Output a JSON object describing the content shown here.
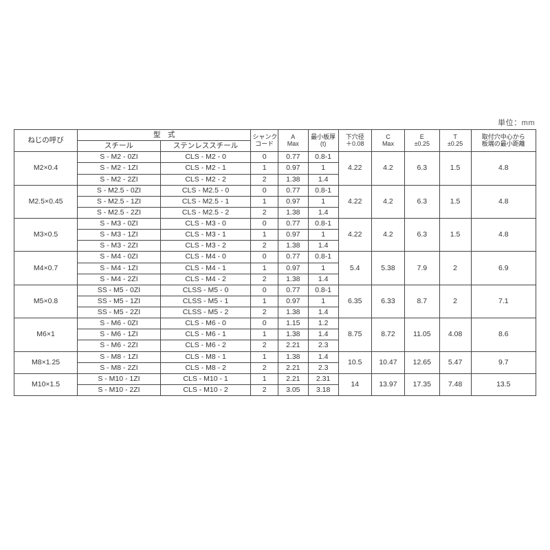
{
  "unit_label": "単位：mm",
  "colors": {
    "border": "#444444",
    "text": "#333333",
    "bg": "#ffffff",
    "unit_text": "#555555"
  },
  "header": {
    "thread": "ねじの呼び",
    "model_group": "型　式",
    "steel": "スチール",
    "stainless": "ステンレススチール",
    "shank_code": "シャンク\nコード",
    "a_max": "A\nMax",
    "min_thick": "最小板厚\n(t)",
    "hole_dia": "下穴径\n＋0.08",
    "c_max": "C\nMax",
    "e_tol": "E\n±0.25",
    "t_tol": "T\n±0.25",
    "edge_dist": "取付穴中心から\n板端の最小距離"
  },
  "groups": [
    {
      "thread": "M2×0.4",
      "rows": [
        {
          "steel": "S - M2 - 0ZI",
          "stain": "CLS - M2 - 0",
          "shank": "0",
          "amax": "0.77",
          "minthk": "0.8-1"
        },
        {
          "steel": "S - M2 - 1ZI",
          "stain": "CLS - M2 - 1",
          "shank": "1",
          "amax": "0.97",
          "minthk": "1"
        },
        {
          "steel": "S - M2 - 2ZI",
          "stain": "CLS - M2 - 2",
          "shank": "2",
          "amax": "1.38",
          "minthk": "1.4"
        }
      ],
      "hole": "4.22",
      "cmax": "4.2",
      "e": "6.3",
      "t": "1.5",
      "edge": "4.8"
    },
    {
      "thread": "M2.5×0.45",
      "rows": [
        {
          "steel": "S - M2.5 - 0ZI",
          "stain": "CLS - M2.5 - 0",
          "shank": "0",
          "amax": "0.77",
          "minthk": "0.8-1"
        },
        {
          "steel": "S - M2.5 - 1ZI",
          "stain": "CLS - M2.5 - 1",
          "shank": "1",
          "amax": "0.97",
          "minthk": "1"
        },
        {
          "steel": "S - M2.5 - 2ZI",
          "stain": "CLS - M2.5 - 2",
          "shank": "2",
          "amax": "1.38",
          "minthk": "1.4"
        }
      ],
      "hole": "4.22",
      "cmax": "4.2",
      "e": "6.3",
      "t": "1.5",
      "edge": "4.8"
    },
    {
      "thread": "M3×0.5",
      "rows": [
        {
          "steel": "S - M3 - 0ZI",
          "stain": "CLS - M3 - 0",
          "shank": "0",
          "amax": "0.77",
          "minthk": "0.8-1"
        },
        {
          "steel": "S - M3 - 1ZI",
          "stain": "CLS - M3 - 1",
          "shank": "1",
          "amax": "0.97",
          "minthk": "1"
        },
        {
          "steel": "S - M3 - 2ZI",
          "stain": "CLS - M3 - 2",
          "shank": "2",
          "amax": "1.38",
          "minthk": "1.4"
        }
      ],
      "hole": "4.22",
      "cmax": "4.2",
      "e": "6.3",
      "t": "1.5",
      "edge": "4.8"
    },
    {
      "thread": "M4×0.7",
      "rows": [
        {
          "steel": "S - M4 - 0ZI",
          "stain": "CLS - M4 - 0",
          "shank": "0",
          "amax": "0.77",
          "minthk": "0.8-1"
        },
        {
          "steel": "S - M4 - 1ZI",
          "stain": "CLS - M4 - 1",
          "shank": "1",
          "amax": "0.97",
          "minthk": "1"
        },
        {
          "steel": "S - M4 - 2ZI",
          "stain": "CLS - M4 - 2",
          "shank": "2",
          "amax": "1.38",
          "minthk": "1.4"
        }
      ],
      "hole": "5.4",
      "cmax": "5.38",
      "e": "7.9",
      "t": "2",
      "edge": "6.9"
    },
    {
      "thread": "M5×0.8",
      "rows": [
        {
          "steel": "SS - M5 - 0ZI",
          "stain": "CLSS - M5 - 0",
          "shank": "0",
          "amax": "0.77",
          "minthk": "0.8-1"
        },
        {
          "steel": "SS - M5 - 1ZI",
          "stain": "CLSS - M5 - 1",
          "shank": "1",
          "amax": "0.97",
          "minthk": "1"
        },
        {
          "steel": "SS - M5 - 2ZI",
          "stain": "CLSS - M5 - 2",
          "shank": "2",
          "amax": "1.38",
          "minthk": "1.4"
        }
      ],
      "hole": "6.35",
      "cmax": "6.33",
      "e": "8.7",
      "t": "2",
      "edge": "7.1"
    },
    {
      "thread": "M6×1",
      "rows": [
        {
          "steel": "S - M6 - 0ZI",
          "stain": "CLS - M6 - 0",
          "shank": "0",
          "amax": "1.15",
          "minthk": "1.2"
        },
        {
          "steel": "S - M6 - 1ZI",
          "stain": "CLS - M6 - 1",
          "shank": "1",
          "amax": "1.38",
          "minthk": "1.4"
        },
        {
          "steel": "S - M6 - 2ZI",
          "stain": "CLS - M6 - 2",
          "shank": "2",
          "amax": "2.21",
          "minthk": "2.3"
        }
      ],
      "hole": "8.75",
      "cmax": "8.72",
      "e": "11.05",
      "t": "4.08",
      "edge": "8.6"
    },
    {
      "thread": "M8×1.25",
      "rows": [
        {
          "steel": "S - M8 - 1ZI",
          "stain": "CLS - M8 - 1",
          "shank": "1",
          "amax": "1.38",
          "minthk": "1.4"
        },
        {
          "steel": "S - M8 - 2ZI",
          "stain": "CLS - M8 - 2",
          "shank": "2",
          "amax": "2.21",
          "minthk": "2.3"
        }
      ],
      "hole": "10.5",
      "cmax": "10.47",
      "e": "12.65",
      "t": "5.47",
      "edge": "9.7"
    },
    {
      "thread": "M10×1.5",
      "rows": [
        {
          "steel": "S - M10 - 1ZI",
          "stain": "CLS - M10 - 1",
          "shank": "1",
          "amax": "2.21",
          "minthk": "2.31"
        },
        {
          "steel": "S - M10 - 2ZI",
          "stain": "CLS - M10 - 2",
          "shank": "2",
          "amax": "3.05",
          "minthk": "3.18"
        }
      ],
      "hole": "14",
      "cmax": "13.97",
      "e": "17.35",
      "t": "7.48",
      "edge": "13.5"
    }
  ]
}
